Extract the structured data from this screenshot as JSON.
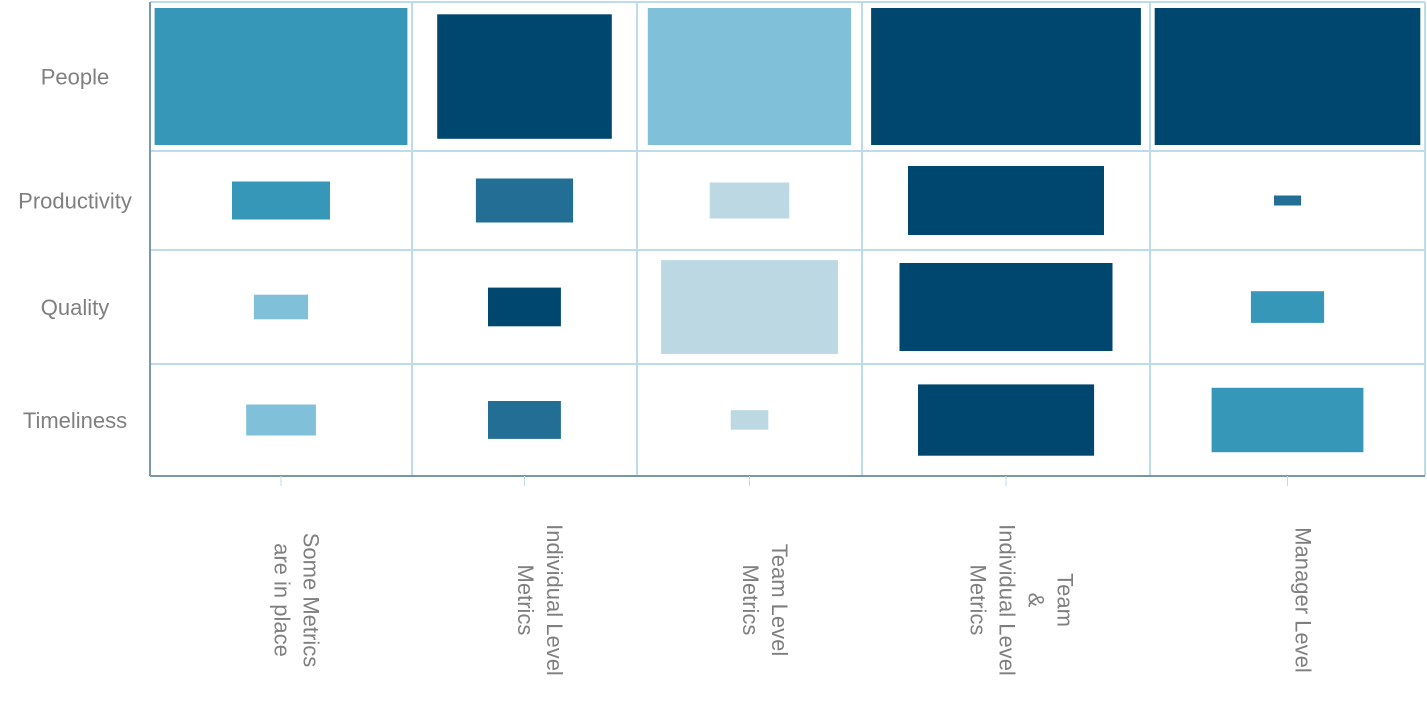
{
  "chart_data": {
    "type": "heatmap",
    "title": "",
    "xlabel": "",
    "ylabel": "",
    "grid": true,
    "legend": "none",
    "rows": [
      "People",
      "Productivity",
      "Quality",
      "Timeliness"
    ],
    "columns": [
      {
        "lines": [
          "Some Metrics",
          "are in place"
        ]
      },
      {
        "lines": [
          "Individual Level",
          "Metrics"
        ]
      },
      {
        "lines": [
          "Team Level",
          "Metrics"
        ]
      },
      {
        "lines": [
          "Team",
          "&",
          "Individual Level",
          "Metrics"
        ]
      },
      {
        "lines": [
          "Manager Level"
        ]
      }
    ],
    "size_fraction": [
      [
        0.98,
        0.79,
        0.92,
        0.95,
        0.98
      ],
      [
        0.38,
        0.44,
        0.36,
        0.69,
        0.1
      ],
      [
        0.21,
        0.33,
        0.8,
        0.75,
        0.27
      ],
      [
        0.27,
        0.33,
        0.17,
        0.62,
        0.56
      ]
    ],
    "color_level": [
      [
        2,
        4,
        1,
        4,
        4
      ],
      [
        2,
        3,
        0,
        4,
        3
      ],
      [
        1,
        4,
        0,
        4,
        2
      ],
      [
        1,
        3,
        0,
        4,
        2
      ]
    ],
    "palette": [
      "#bcd9e3",
      "#80c1d9",
      "#3697b9",
      "#226e94",
      "#00476f"
    ],
    "gridline_color": "#bcdcec",
    "frame_color": "#7a97a6",
    "label_color": "#7f7f7f"
  }
}
